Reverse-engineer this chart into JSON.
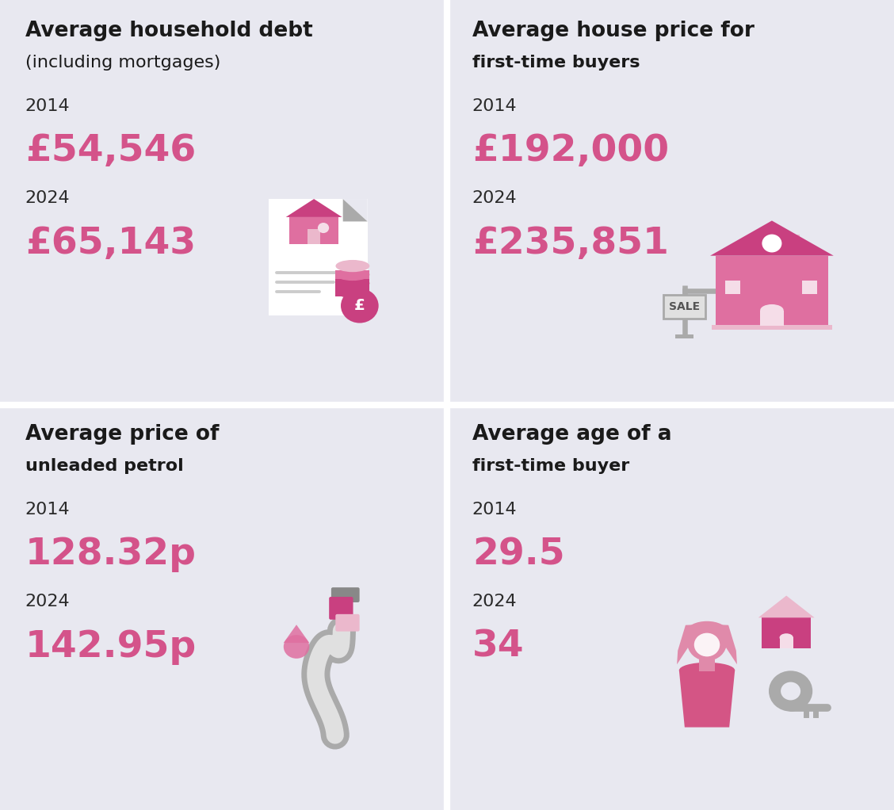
{
  "bg_color": "#e8e8f0",
  "title_color": "#1a1a1a",
  "year_color": "#2a2a2a",
  "value_color": "#d4538a",
  "panels": [
    {
      "title_line1": "Average household debt",
      "title_line2": "(including mortgages)",
      "title2_bold": false,
      "year1": "2014",
      "value1": "£54,546",
      "year2": "2024",
      "value2": "£65,143"
    },
    {
      "title_line1": "Average house price for",
      "title_line2": "first-time buyers",
      "title2_bold": true,
      "year1": "2014",
      "value1": "£192,000",
      "year2": "2024",
      "value2": "£235,851"
    },
    {
      "title_line1": "Average price of",
      "title_line2": "unleaded petrol",
      "title2_bold": true,
      "year1": "2014",
      "value1": "128.32p",
      "year2": "2024",
      "value2": "142.95p"
    },
    {
      "title_line1": "Average age of a",
      "title_line2": "first-time buyer",
      "title2_bold": true,
      "year1": "2014",
      "value1": "29.5",
      "year2": "2024",
      "value2": "34"
    }
  ],
  "pink_dark": "#c94080",
  "pink_mid": "#df6fa0",
  "pink_light": "#ebb8cc",
  "pink_pale": "#f5dde8",
  "pink_body": "#d45585",
  "pink_head": "#e08aaa",
  "gray_dark": "#888888",
  "gray_mid": "#aaaaaa",
  "gray_light": "#cccccc",
  "gray_vlight": "#e0e0e0",
  "white": "#ffffff",
  "title1_fontsize": 19,
  "title2_fontsize": 16,
  "year_fontsize": 16,
  "value_fontsize": 34
}
